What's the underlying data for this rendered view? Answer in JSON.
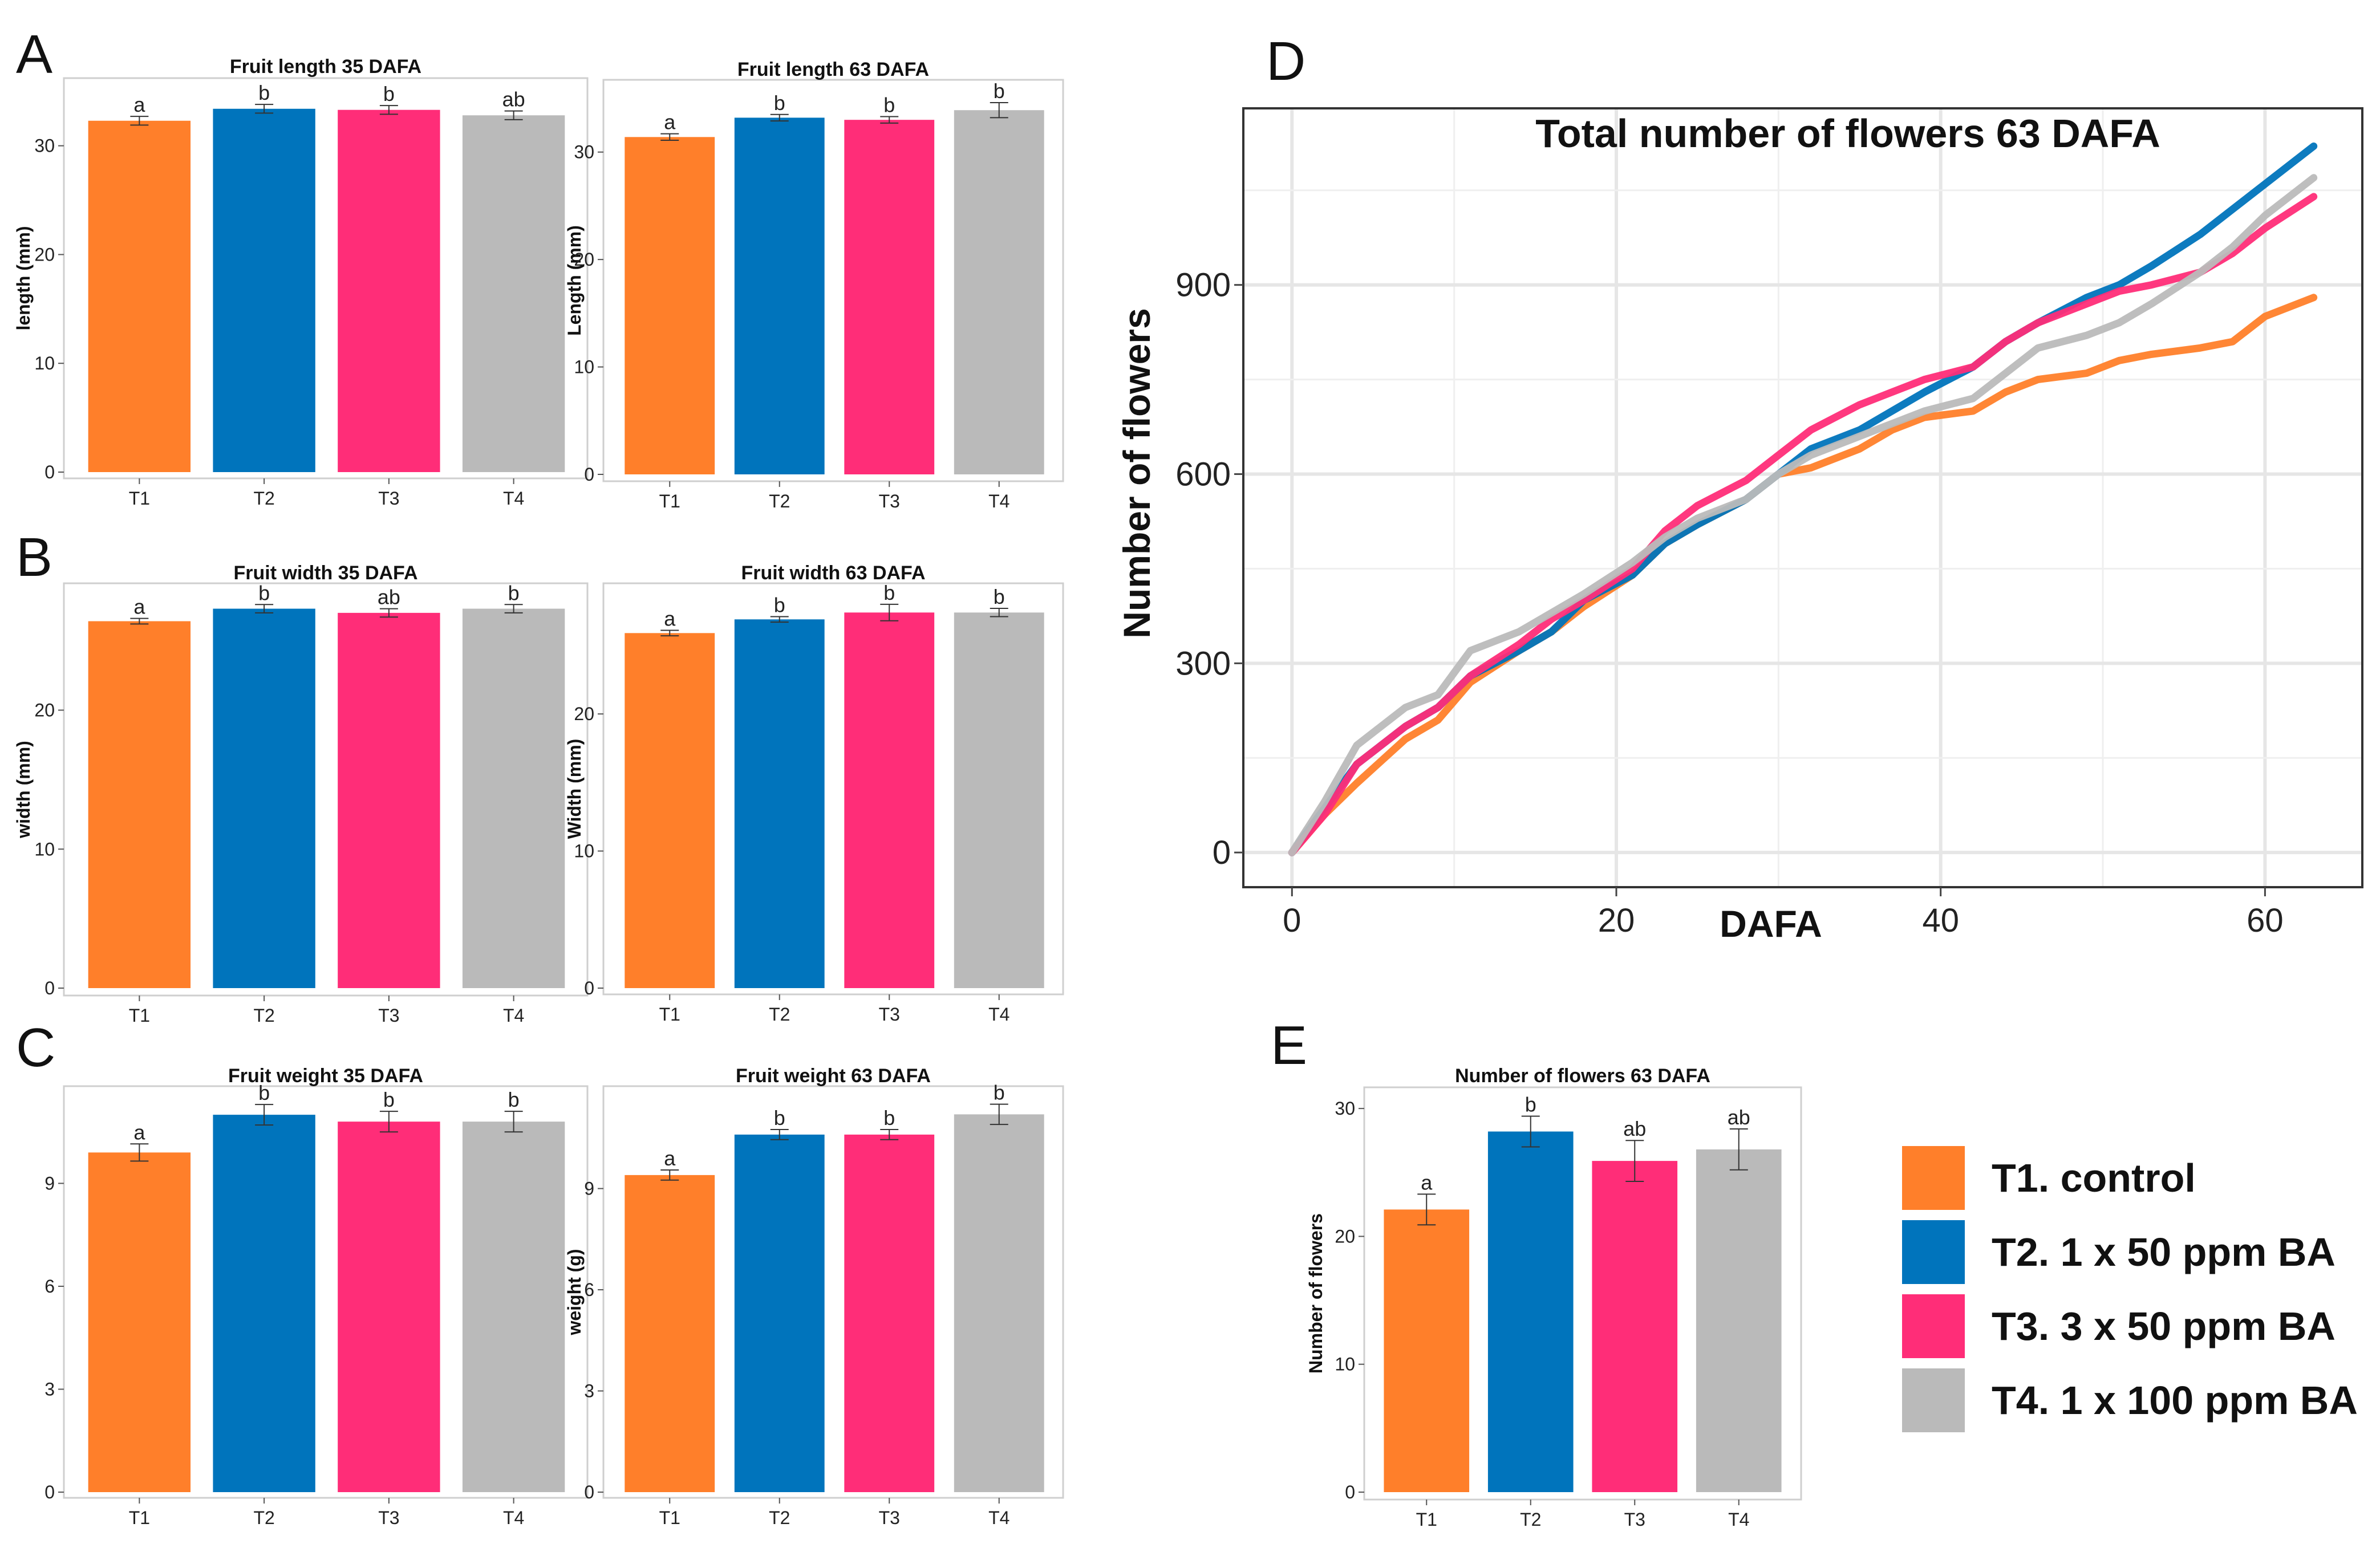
{
  "panel_labels": {
    "A": "A",
    "B": "B",
    "C": "C",
    "D": "D",
    "E": "E"
  },
  "colors": {
    "T1": "#FF7F2A",
    "T2": "#0074BC",
    "T3": "#FF2D78",
    "T4": "#BABABA"
  },
  "chart_data": [
    {
      "id": "A1",
      "type": "bar",
      "panel": "A",
      "title": "Fruit length 35 DAFA",
      "xlabel": "",
      "ylabel": "length (mm)",
      "categories": [
        "T1",
        "T2",
        "T3",
        "T4"
      ],
      "values": [
        32.3,
        33.4,
        33.3,
        32.8
      ],
      "errors": [
        0.4,
        0.4,
        0.4,
        0.4
      ],
      "significance": [
        "a",
        "b",
        "b",
        "ab"
      ],
      "ylim": [
        0,
        35.8
      ],
      "yticks": [
        0,
        10,
        20,
        30
      ]
    },
    {
      "id": "A2",
      "type": "bar",
      "panel": "A",
      "title": "Fruit length 63 DAFA",
      "xlabel": "",
      "ylabel": "Length (mm)",
      "categories": [
        "T1",
        "T2",
        "T3",
        "T4"
      ],
      "values": [
        31.4,
        33.2,
        33.0,
        33.9
      ],
      "errors": [
        0.3,
        0.3,
        0.3,
        0.7
      ],
      "significance": [
        "a",
        "b",
        "b",
        "b"
      ],
      "ylim": [
        0,
        36.3
      ],
      "yticks": [
        0,
        10,
        20,
        30
      ]
    },
    {
      "id": "B1",
      "type": "bar",
      "panel": "B",
      "title": "Fruit width 35 DAFA",
      "xlabel": "",
      "ylabel": "width (mm)",
      "categories": [
        "T1",
        "T2",
        "T3",
        "T4"
      ],
      "values": [
        26.4,
        27.3,
        27.0,
        27.3
      ],
      "errors": [
        0.2,
        0.3,
        0.3,
        0.3
      ],
      "significance": [
        "a",
        "b",
        "ab",
        "b"
      ],
      "ylim": [
        0,
        28.8
      ],
      "yticks": [
        0,
        10,
        20
      ]
    },
    {
      "id": "B2",
      "type": "bar",
      "panel": "B",
      "title": "Fruit width 63 DAFA",
      "xlabel": "",
      "ylabel": "Width (mm)",
      "categories": [
        "T1",
        "T2",
        "T3",
        "T4"
      ],
      "values": [
        25.9,
        26.9,
        27.4,
        27.4
      ],
      "errors": [
        0.2,
        0.2,
        0.6,
        0.3
      ],
      "significance": [
        "a",
        "b",
        "b",
        "b"
      ],
      "ylim": [
        0,
        29.2
      ],
      "yticks": [
        0,
        10,
        20
      ]
    },
    {
      "id": "C1",
      "type": "bar",
      "panel": "C",
      "title": "Fruit weight 35 DAFA",
      "xlabel": "",
      "ylabel": "",
      "categories": [
        "T1",
        "T2",
        "T3",
        "T4"
      ],
      "values": [
        9.9,
        11.0,
        10.8,
        10.8
      ],
      "errors": [
        0.25,
        0.3,
        0.3,
        0.3
      ],
      "significance": [
        "a",
        "b",
        "b",
        "b"
      ],
      "ylim": [
        0,
        11.7
      ],
      "yticks": [
        0,
        3,
        6,
        9
      ]
    },
    {
      "id": "C2",
      "type": "bar",
      "panel": "C",
      "title": "Fruit weight 63 DAFA",
      "xlabel": "",
      "ylabel": "weight (g)",
      "categories": [
        "T1",
        "T2",
        "T3",
        "T4"
      ],
      "values": [
        9.4,
        10.6,
        10.6,
        11.2
      ],
      "errors": [
        0.15,
        0.15,
        0.15,
        0.3
      ],
      "significance": [
        "a",
        "b",
        "b",
        "b"
      ],
      "ylim": [
        0,
        11.9
      ],
      "yticks": [
        0,
        3,
        6,
        9
      ]
    },
    {
      "id": "D",
      "type": "line",
      "panel": "D",
      "title": "Total number of flowers 63 DAFA",
      "xlabel": "DAFA",
      "ylabel": "Number of flowers",
      "xlim": [
        -3,
        66
      ],
      "ylim": [
        -55,
        1180
      ],
      "xticks": [
        0,
        20,
        40,
        60
      ],
      "yticks": [
        0,
        300,
        600,
        900
      ],
      "series": [
        {
          "name": "T1",
          "x": [
            0,
            2,
            4,
            7,
            9,
            11,
            14,
            16,
            18,
            21,
            23,
            25,
            28,
            30,
            32,
            35,
            37,
            39,
            42,
            44,
            46,
            49,
            51,
            53,
            56,
            58,
            60,
            63
          ],
          "y": [
            0,
            60,
            110,
            180,
            210,
            270,
            320,
            350,
            390,
            440,
            490,
            520,
            560,
            600,
            610,
            640,
            670,
            690,
            700,
            730,
            750,
            760,
            780,
            790,
            800,
            810,
            850,
            880
          ]
        },
        {
          "name": "T2",
          "x": [
            0,
            2,
            4,
            7,
            9,
            11,
            14,
            16,
            18,
            21,
            23,
            25,
            28,
            30,
            32,
            35,
            37,
            39,
            42,
            44,
            46,
            49,
            51,
            53,
            56,
            58,
            60,
            63
          ],
          "y": [
            0,
            70,
            140,
            200,
            230,
            280,
            320,
            350,
            400,
            440,
            490,
            520,
            560,
            600,
            640,
            670,
            700,
            730,
            770,
            810,
            840,
            880,
            900,
            930,
            980,
            1020,
            1060,
            1120
          ]
        },
        {
          "name": "T3",
          "x": [
            0,
            2,
            4,
            7,
            9,
            11,
            14,
            16,
            18,
            21,
            23,
            25,
            28,
            30,
            32,
            35,
            37,
            39,
            42,
            44,
            46,
            49,
            51,
            53,
            56,
            58,
            60,
            63
          ],
          "y": [
            0,
            60,
            140,
            200,
            230,
            280,
            330,
            370,
            400,
            450,
            510,
            550,
            590,
            630,
            670,
            710,
            730,
            750,
            770,
            810,
            840,
            870,
            890,
            900,
            920,
            950,
            990,
            1040
          ]
        },
        {
          "name": "T4",
          "x": [
            0,
            2,
            4,
            7,
            9,
            11,
            14,
            16,
            18,
            21,
            23,
            25,
            28,
            30,
            32,
            35,
            37,
            39,
            42,
            44,
            46,
            49,
            51,
            53,
            56,
            58,
            60,
            63
          ],
          "y": [
            0,
            80,
            170,
            230,
            250,
            320,
            350,
            380,
            410,
            460,
            500,
            530,
            560,
            600,
            630,
            660,
            680,
            700,
            720,
            760,
            800,
            820,
            840,
            870,
            920,
            960,
            1010,
            1070
          ]
        }
      ]
    },
    {
      "id": "E",
      "type": "bar",
      "panel": "E",
      "title": "Number of flowers 63 DAFA",
      "xlabel": "",
      "ylabel": "Number of flowers",
      "categories": [
        "T1",
        "T2",
        "T3",
        "T4"
      ],
      "values": [
        22.1,
        28.2,
        25.9,
        26.8
      ],
      "errors": [
        1.2,
        1.2,
        1.6,
        1.6
      ],
      "significance": [
        "a",
        "b",
        "ab",
        "ab"
      ],
      "ylim": [
        0,
        31.3
      ],
      "yticks": [
        0,
        10,
        20,
        30
      ]
    }
  ],
  "legend": [
    {
      "key": "T1",
      "label": "T1. control"
    },
    {
      "key": "T2",
      "label": "T2. 1 x 50 ppm BA"
    },
    {
      "key": "T3",
      "label": "T3. 3 x 50 ppm BA"
    },
    {
      "key": "T4",
      "label": "T4. 1 x 100 ppm BA"
    }
  ]
}
